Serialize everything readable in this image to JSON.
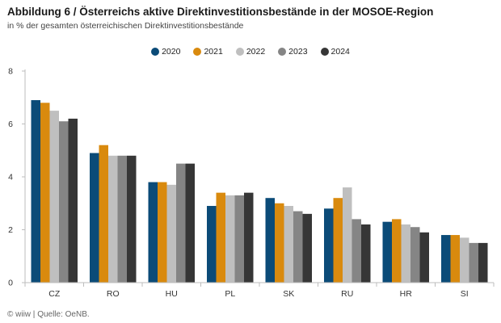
{
  "title": "Abbildung 6 / Österreichs aktive Direktinvestitionsbestände in der MOSOE-Region",
  "subtitle": "in % der gesamten österreichischen Direktinvestitionsbestände",
  "footer": "© wiiw | Quelle: OeNB.",
  "chart_data": {
    "type": "bar",
    "categories": [
      "CZ",
      "RO",
      "HU",
      "PL",
      "SK",
      "RU",
      "HR",
      "SI"
    ],
    "series": [
      {
        "name": "2020",
        "color": "#0b4b78",
        "values": [
          6.9,
          4.9,
          3.8,
          2.9,
          3.2,
          2.8,
          2.3,
          1.8
        ]
      },
      {
        "name": "2021",
        "color": "#d98a0e",
        "values": [
          6.8,
          5.2,
          3.8,
          3.4,
          3.0,
          3.2,
          2.4,
          1.8
        ]
      },
      {
        "name": "2022",
        "color": "#bfbfbf",
        "values": [
          6.5,
          4.8,
          3.7,
          3.3,
          2.9,
          3.6,
          2.2,
          1.7
        ]
      },
      {
        "name": "2023",
        "color": "#858585",
        "values": [
          6.1,
          4.8,
          4.5,
          3.3,
          2.7,
          2.4,
          2.1,
          1.5
        ]
      },
      {
        "name": "2024",
        "color": "#363636",
        "values": [
          6.2,
          4.8,
          4.5,
          3.4,
          2.6,
          2.2,
          1.9,
          1.5
        ]
      }
    ],
    "yticks": [
      "0",
      "2",
      "4",
      "6",
      "8"
    ],
    "ylim": [
      0,
      8
    ],
    "legend_position": "top-center",
    "grid": false
  }
}
